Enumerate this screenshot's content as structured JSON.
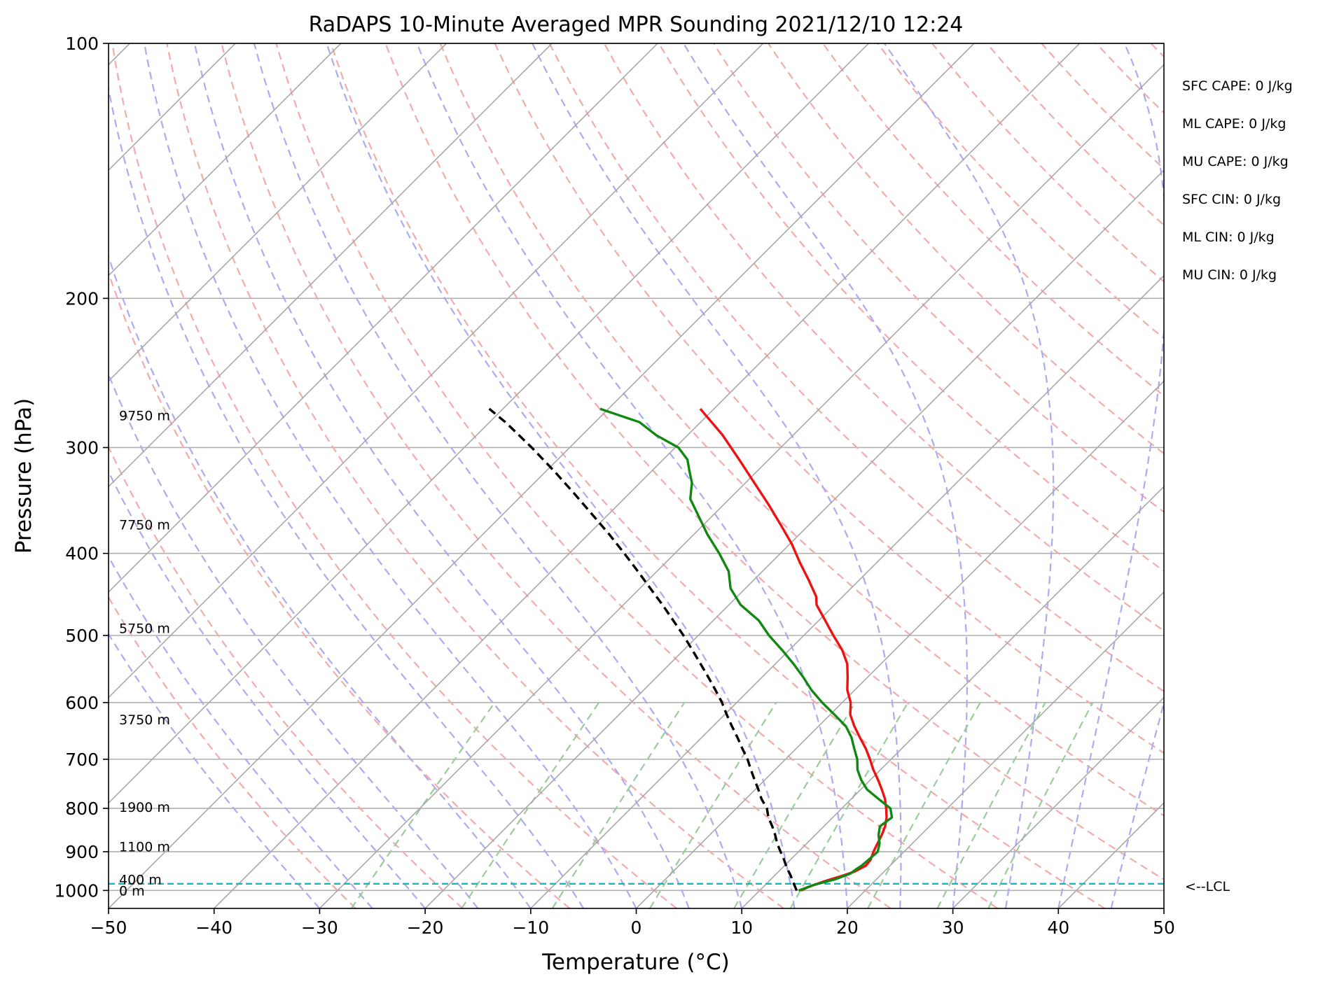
{
  "chart_data": {
    "type": "line",
    "subtype": "skew-t log-p sounding",
    "title": "RaDAPS 10-Minute Averaged MPR Sounding 2021/12/10 12:24",
    "xlabel": "Temperature (°C)",
    "ylabel": "Pressure (hPa)",
    "xlim": [
      -50,
      50
    ],
    "ylim": [
      1050,
      100
    ],
    "y_scale": "log",
    "grid": true,
    "x_ticks": [
      "−50",
      "−40",
      "−30",
      "−20",
      "−10",
      "0",
      "10",
      "20",
      "30",
      "40",
      "50"
    ],
    "x_tick_values": [
      -50,
      -40,
      -30,
      -20,
      -10,
      0,
      10,
      20,
      30,
      40,
      50
    ],
    "y_ticks": [
      "100",
      "200",
      "300",
      "400",
      "500",
      "600",
      "700",
      "800",
      "900",
      "1000"
    ],
    "y_tick_values": [
      100,
      200,
      300,
      400,
      500,
      600,
      700,
      800,
      900,
      1000
    ],
    "series": [
      {
        "role": "temperature",
        "color": "#ee1111",
        "style": "solid",
        "points": [
          [
            1000,
            13.9
          ],
          [
            990,
            14.3
          ],
          [
            975,
            15.3
          ],
          [
            960,
            16.5
          ],
          [
            950,
            17.2
          ],
          [
            935,
            17.7
          ],
          [
            920,
            17.6
          ],
          [
            900,
            17.1
          ],
          [
            880,
            16.7
          ],
          [
            860,
            16.3
          ],
          [
            840,
            15.8
          ],
          [
            820,
            15.1
          ],
          [
            800,
            14.2
          ],
          [
            780,
            13.2
          ],
          [
            760,
            12.0
          ],
          [
            740,
            10.7
          ],
          [
            720,
            9.3
          ],
          [
            700,
            8.0
          ],
          [
            680,
            6.6
          ],
          [
            660,
            5.0
          ],
          [
            640,
            3.4
          ],
          [
            620,
            1.9
          ],
          [
            600,
            0.8
          ],
          [
            580,
            -0.7
          ],
          [
            560,
            -1.9
          ],
          [
            540,
            -3.2
          ],
          [
            520,
            -5.0
          ],
          [
            500,
            -7.2
          ],
          [
            480,
            -9.4
          ],
          [
            460,
            -11.7
          ],
          [
            450,
            -12.5
          ],
          [
            430,
            -14.8
          ],
          [
            410,
            -17.3
          ],
          [
            390,
            -19.8
          ],
          [
            370,
            -22.7
          ],
          [
            350,
            -25.8
          ],
          [
            330,
            -29.2
          ],
          [
            310,
            -32.8
          ],
          [
            290,
            -36.7
          ],
          [
            270,
            -41.3
          ]
        ]
      },
      {
        "role": "dewpoint",
        "color": "#118811",
        "style": "solid",
        "points": [
          [
            1000,
            13.7
          ],
          [
            985,
            14.6
          ],
          [
            970,
            16.1
          ],
          [
            955,
            17.0
          ],
          [
            945,
            17.1
          ],
          [
            935,
            17.3
          ],
          [
            920,
            17.4
          ],
          [
            900,
            17.5
          ],
          [
            880,
            16.9
          ],
          [
            860,
            16.0
          ],
          [
            840,
            15.3
          ],
          [
            820,
            15.6
          ],
          [
            800,
            14.6
          ],
          [
            780,
            12.6
          ],
          [
            760,
            10.6
          ],
          [
            740,
            9.1
          ],
          [
            720,
            7.8
          ],
          [
            700,
            6.8
          ],
          [
            680,
            5.5
          ],
          [
            660,
            4.2
          ],
          [
            640,
            2.6
          ],
          [
            620,
            0.4
          ],
          [
            600,
            -1.9
          ],
          [
            580,
            -4.1
          ],
          [
            560,
            -6.1
          ],
          [
            540,
            -8.3
          ],
          [
            520,
            -10.7
          ],
          [
            500,
            -13.3
          ],
          [
            480,
            -15.7
          ],
          [
            460,
            -18.9
          ],
          [
            440,
            -21.4
          ],
          [
            420,
            -23.2
          ],
          [
            400,
            -25.8
          ],
          [
            380,
            -28.7
          ],
          [
            360,
            -31.5
          ],
          [
            345,
            -33.7
          ],
          [
            330,
            -35.1
          ],
          [
            320,
            -36.4
          ],
          [
            310,
            -37.7
          ],
          [
            300,
            -39.7
          ],
          [
            290,
            -43.0
          ],
          [
            280,
            -45.8
          ],
          [
            270,
            -50.8
          ]
        ]
      },
      {
        "role": "parcel",
        "color": "#000000",
        "style": "dashed",
        "points": [
          [
            1000,
            13.5
          ],
          [
            980,
            12.5
          ],
          [
            960,
            11.5
          ],
          [
            940,
            10.4
          ],
          [
            920,
            9.4
          ],
          [
            900,
            8.3
          ],
          [
            880,
            7.2
          ],
          [
            860,
            6.2
          ],
          [
            840,
            5.1
          ],
          [
            820,
            3.9
          ],
          [
            800,
            2.9
          ],
          [
            780,
            1.5
          ],
          [
            760,
            0.3
          ],
          [
            740,
            -1.0
          ],
          [
            720,
            -2.3
          ],
          [
            700,
            -3.6
          ],
          [
            680,
            -5.1
          ],
          [
            660,
            -6.6
          ],
          [
            640,
            -8.2
          ],
          [
            620,
            -9.8
          ],
          [
            600,
            -11.4
          ],
          [
            580,
            -13.2
          ],
          [
            560,
            -15.1
          ],
          [
            540,
            -17.1
          ],
          [
            520,
            -19.2
          ],
          [
            500,
            -21.4
          ],
          [
            480,
            -23.8
          ],
          [
            460,
            -26.3
          ],
          [
            440,
            -29.0
          ],
          [
            420,
            -31.8
          ],
          [
            400,
            -34.8
          ],
          [
            380,
            -38.0
          ],
          [
            360,
            -41.5
          ],
          [
            340,
            -45.2
          ],
          [
            320,
            -49.2
          ],
          [
            300,
            -53.6
          ],
          [
            290,
            -56.0
          ],
          [
            280,
            -58.5
          ],
          [
            270,
            -61.3
          ]
        ]
      }
    ],
    "lcl": {
      "pressure": 982,
      "label": "<--LCL",
      "color": "#11bbbb"
    },
    "height_labels": [
      {
        "text": "9750 m",
        "p": 275
      },
      {
        "text": "7750 m",
        "p": 370
      },
      {
        "text": "5750 m",
        "p": 490
      },
      {
        "text": "3750 m",
        "p": 628
      },
      {
        "text": "1900 m",
        "p": 797
      },
      {
        "text": "1100 m",
        "p": 887
      },
      {
        "text": "400 m",
        "p": 970
      },
      {
        "text": "0 m",
        "p": 1000
      }
    ],
    "stats": [
      "SFC CAPE: 0 J/kg",
      "ML CAPE: 0 J/kg",
      "MU CAPE: 0 J/kg",
      "SFC CIN: 0 J/kg",
      "ML CIN: 0 J/kg",
      "MU CIN: 0 J/kg"
    ],
    "reference_lines": {
      "dry_adiabat_color": "#f5aaaa",
      "moist_adiabat_color": "#aaaaf5",
      "mixing_ratio_color": "#99cc99",
      "isotherm_color": "#888888"
    }
  }
}
